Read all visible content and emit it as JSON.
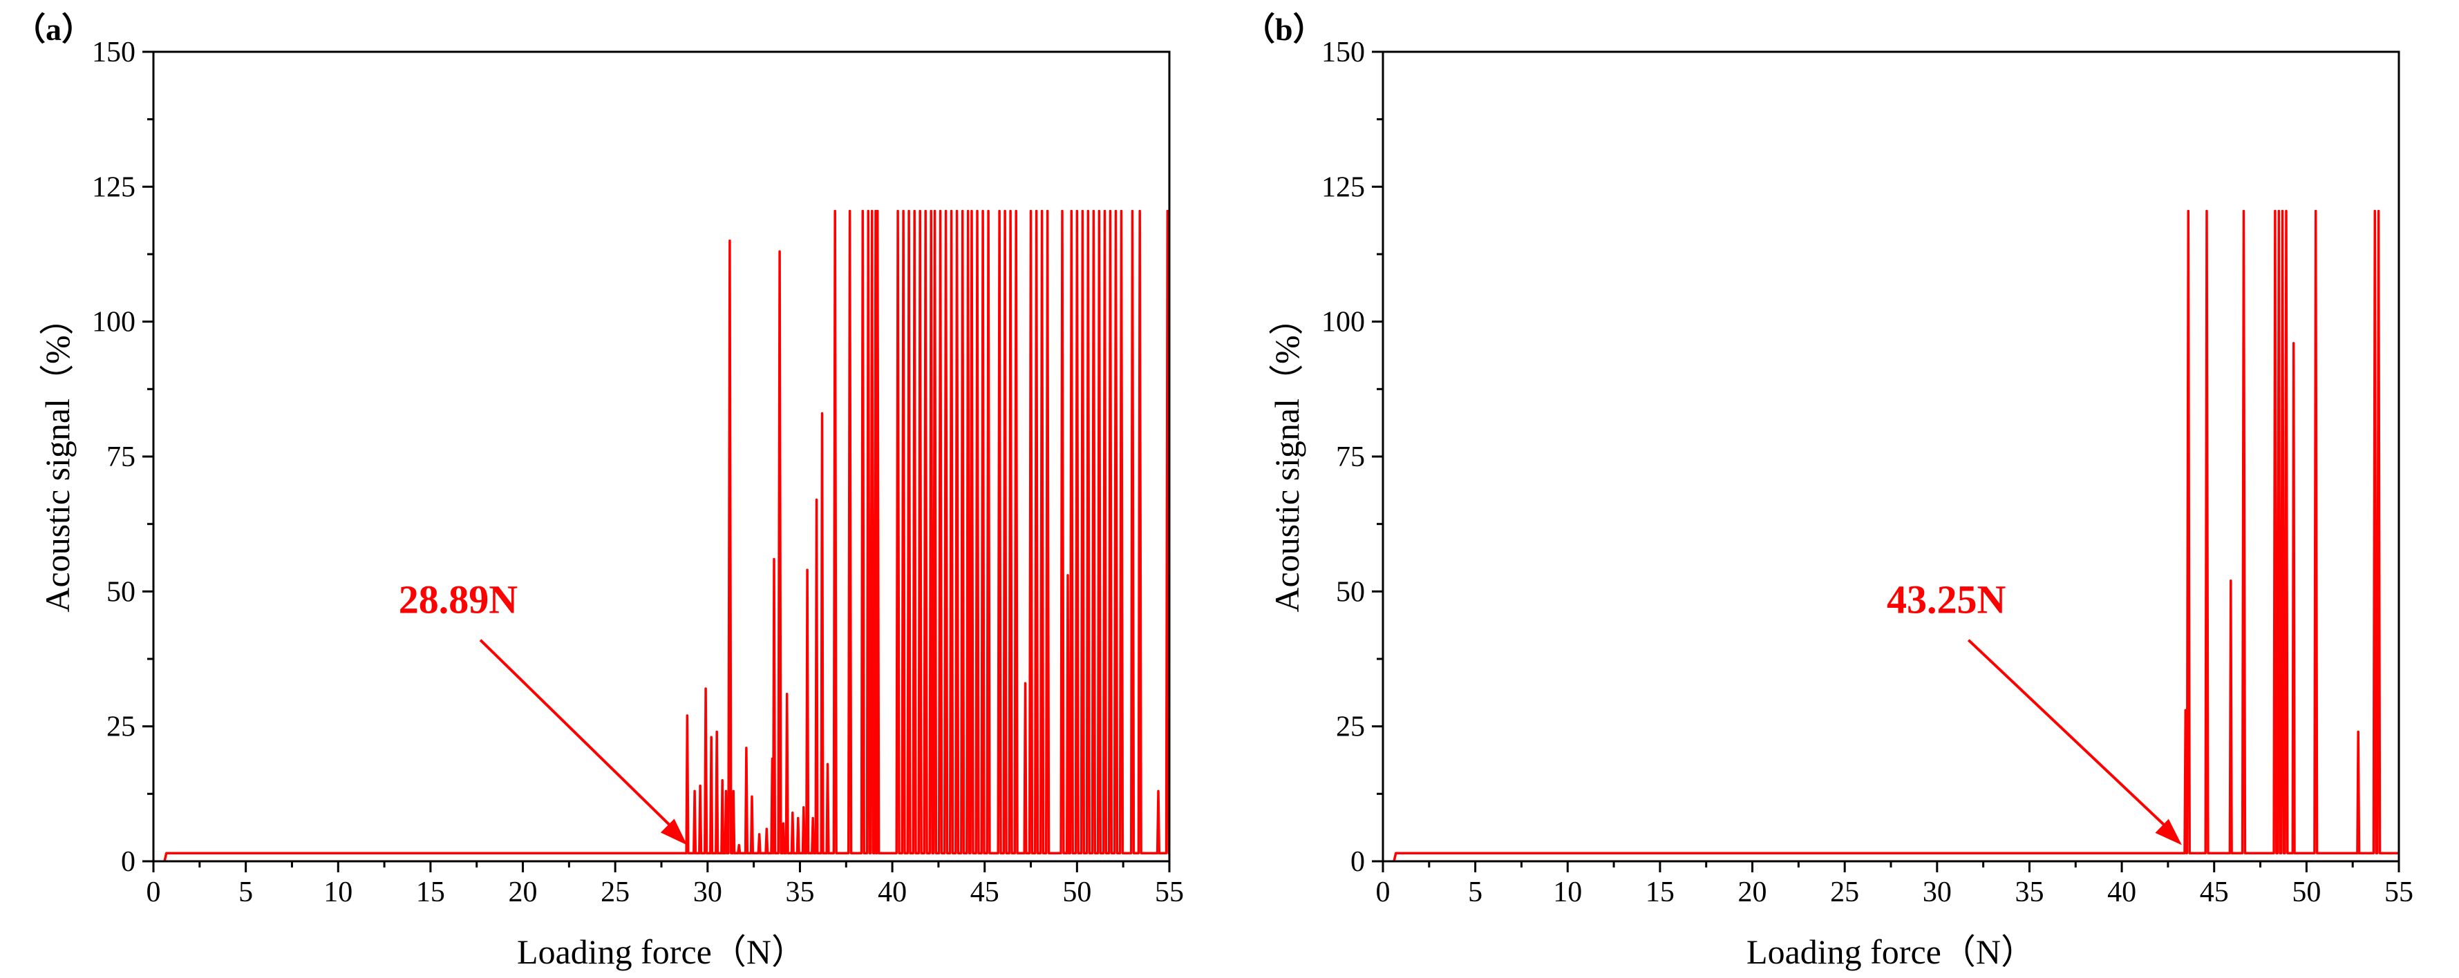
{
  "chart_data": [
    {
      "panel_label": "（a）",
      "type": "line",
      "xlabel": "Loading force（N）",
      "ylabel": "Acoustic signal（%）",
      "xlim": [
        0,
        55
      ],
      "ylim": [
        0,
        150
      ],
      "x_ticks": [
        "0",
        "5",
        "10",
        "15",
        "20",
        "25",
        "30",
        "35",
        "40",
        "45",
        "50",
        "55"
      ],
      "y_ticks": [
        "0",
        "25",
        "50",
        "75",
        "100",
        "125",
        "150"
      ],
      "grid": false,
      "series_color": "#ff0000",
      "baseline": 1.5,
      "baseline_start": 0.6,
      "annotation": {
        "text": "28.89N",
        "x": 28.89,
        "y": 1.5,
        "text_x": 16.5,
        "text_y": 46
      },
      "spikes": [
        [
          28.9,
          27
        ],
        [
          29.3,
          13
        ],
        [
          29.6,
          14
        ],
        [
          29.9,
          32
        ],
        [
          30.2,
          23
        ],
        [
          30.5,
          24
        ],
        [
          30.8,
          15
        ],
        [
          31.0,
          13
        ],
        [
          31.2,
          115
        ],
        [
          31.4,
          13
        ],
        [
          31.7,
          3
        ],
        [
          32.1,
          21
        ],
        [
          32.4,
          12
        ],
        [
          32.8,
          5
        ],
        [
          33.2,
          6
        ],
        [
          33.5,
          19
        ],
        [
          33.6,
          56
        ],
        [
          33.9,
          113
        ],
        [
          34.1,
          7
        ],
        [
          34.3,
          31
        ],
        [
          34.6,
          9
        ],
        [
          34.9,
          8
        ],
        [
          35.2,
          10
        ],
        [
          35.4,
          54
        ],
        [
          35.7,
          8
        ],
        [
          35.9,
          67
        ],
        [
          36.2,
          83
        ],
        [
          36.5,
          18
        ],
        [
          36.9,
          120.5
        ],
        [
          37.7,
          120.5
        ],
        [
          38.4,
          120.5
        ],
        [
          38.7,
          120.5
        ],
        [
          38.9,
          120.5
        ],
        [
          39.1,
          120.5
        ],
        [
          39.2,
          120.5
        ],
        [
          40.3,
          120.5
        ],
        [
          40.6,
          120.5
        ],
        [
          40.9,
          120.5
        ],
        [
          41.2,
          120.5
        ],
        [
          41.5,
          120.5
        ],
        [
          41.8,
          120.5
        ],
        [
          42.1,
          120.5
        ],
        [
          42.3,
          120.5
        ],
        [
          42.6,
          120.5
        ],
        [
          42.9,
          120.5
        ],
        [
          43.2,
          120.5
        ],
        [
          43.5,
          120.5
        ],
        [
          43.8,
          120.5
        ],
        [
          44.1,
          120.5
        ],
        [
          44.3,
          120.5
        ],
        [
          44.6,
          120.5
        ],
        [
          44.9,
          120.5
        ],
        [
          45.2,
          120.5
        ],
        [
          45.8,
          120.5
        ],
        [
          46.1,
          120.5
        ],
        [
          46.4,
          120.5
        ],
        [
          46.7,
          120.5
        ],
        [
          47.2,
          33
        ],
        [
          47.5,
          120.5
        ],
        [
          47.8,
          120.5
        ],
        [
          48.1,
          120.5
        ],
        [
          48.4,
          120.5
        ],
        [
          49.2,
          120.5
        ],
        [
          49.5,
          53
        ],
        [
          49.7,
          120.5
        ],
        [
          50.0,
          120.5
        ],
        [
          50.3,
          120.5
        ],
        [
          50.6,
          120.5
        ],
        [
          50.9,
          120.5
        ],
        [
          51.2,
          120.5
        ],
        [
          51.5,
          120.5
        ],
        [
          51.8,
          120.5
        ],
        [
          52.1,
          120.5
        ],
        [
          52.4,
          120.5
        ],
        [
          53.0,
          120.5
        ],
        [
          53.4,
          120.5
        ],
        [
          54.4,
          13
        ],
        [
          54.9,
          120.5
        ]
      ]
    },
    {
      "panel_label": "（b）",
      "type": "line",
      "xlabel": "Loading force（N）",
      "ylabel": "Acoustic signal（%）",
      "xlim": [
        0,
        55
      ],
      "ylim": [
        0,
        150
      ],
      "x_ticks": [
        "0",
        "5",
        "10",
        "15",
        "20",
        "25",
        "30",
        "35",
        "40",
        "45",
        "50",
        "55"
      ],
      "y_ticks": [
        "0",
        "25",
        "50",
        "75",
        "100",
        "125",
        "150"
      ],
      "grid": false,
      "series_color": "#ff0000",
      "baseline": 1.5,
      "baseline_start": 0.6,
      "annotation": {
        "text": "43.25N",
        "x": 43.25,
        "y": 1.5,
        "text_x": 30.5,
        "text_y": 46
      },
      "spikes": [
        [
          43.45,
          28
        ],
        [
          43.6,
          120.5
        ],
        [
          44.6,
          120.5
        ],
        [
          45.9,
          52
        ],
        [
          46.6,
          120.5
        ],
        [
          48.3,
          120.5
        ],
        [
          48.5,
          120.5
        ],
        [
          48.7,
          120.5
        ],
        [
          48.9,
          120.5
        ],
        [
          49.3,
          96
        ],
        [
          50.5,
          120.5
        ],
        [
          52.8,
          24
        ],
        [
          53.7,
          120.5
        ],
        [
          53.9,
          120.5
        ]
      ]
    }
  ]
}
